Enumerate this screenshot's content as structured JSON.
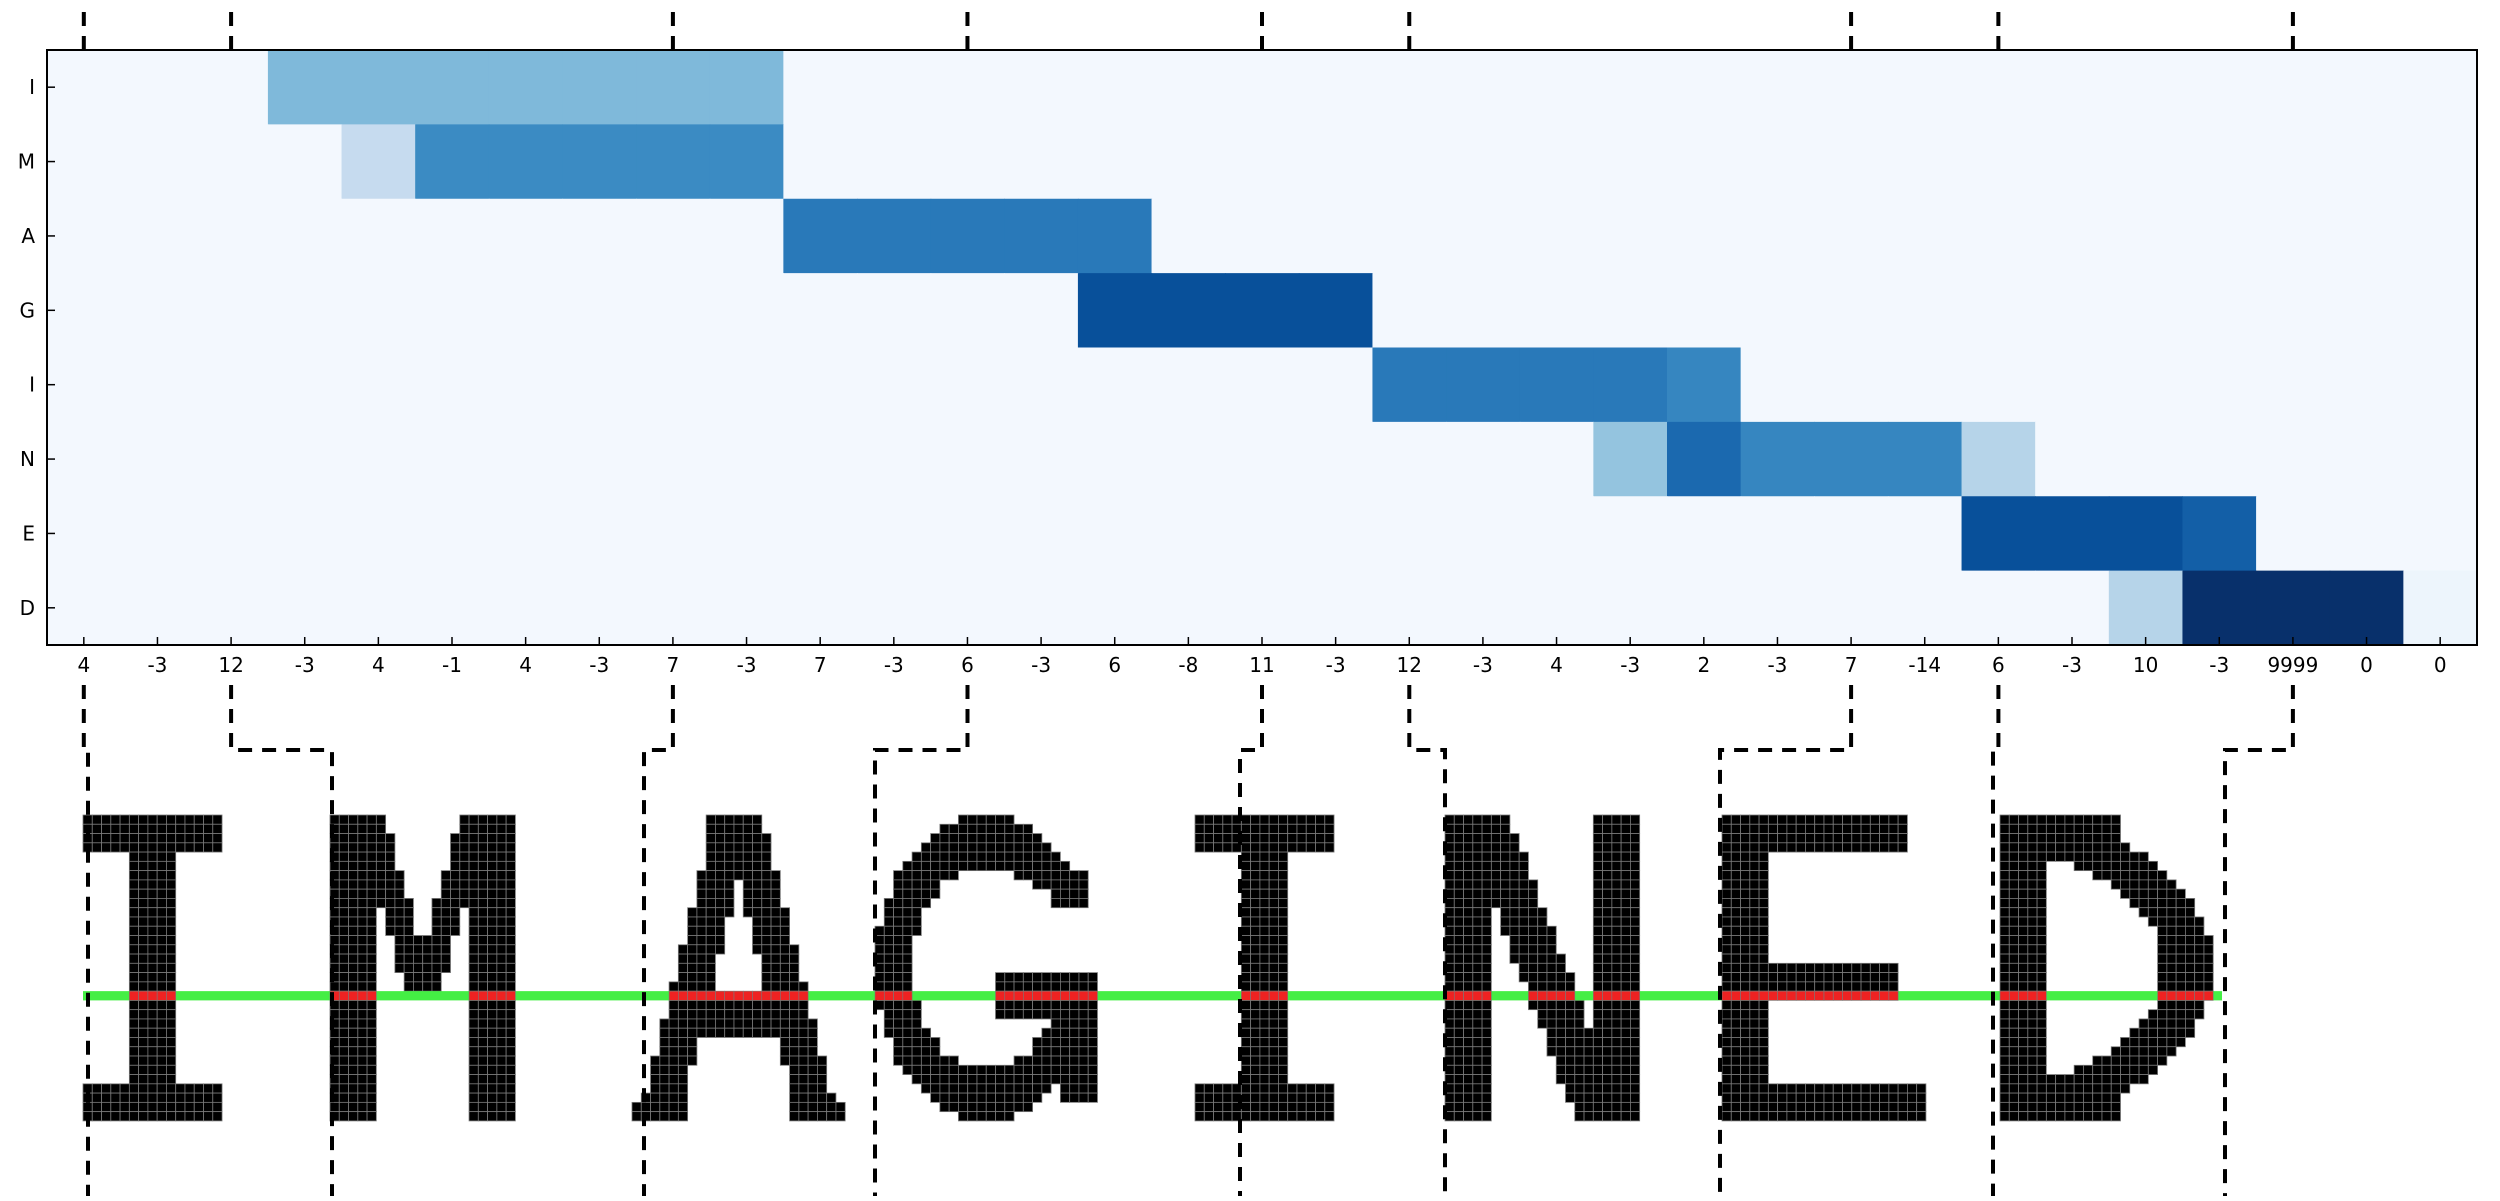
{
  "chart_data": {
    "type": "heatmap",
    "title": "",
    "xlabel": "",
    "ylabel": "",
    "y_labels": [
      "I",
      "M",
      "A",
      "G",
      "I",
      "N",
      "E",
      "D"
    ],
    "x_tick_labels": [
      "4",
      "-3",
      "12",
      "-3",
      "4",
      "-1",
      "4",
      "-3",
      "7",
      "-3",
      "7",
      "-3",
      "6",
      "-3",
      "6",
      "-8",
      "11",
      "-3",
      "12",
      "-3",
      "4",
      "-3",
      "2",
      "-3",
      "7",
      "-14",
      "6",
      "-3",
      "10",
      "-3",
      "9999",
      "0",
      "0"
    ],
    "colormap": "Blues",
    "values": [
      [
        0.02,
        0.02,
        0.02,
        0.45,
        0.45,
        0.45,
        0.45,
        0.45,
        0.45,
        0.45,
        0.02,
        0.02,
        0.02,
        0.02,
        0.02,
        0.02,
        0.02,
        0.02,
        0.02,
        0.02,
        0.02,
        0.02,
        0.02,
        0.02,
        0.02,
        0.02,
        0.02,
        0.02,
        0.02,
        0.02,
        0.02,
        0.02,
        0.02
      ],
      [
        0.02,
        0.02,
        0.02,
        0.02,
        0.25,
        0.65,
        0.65,
        0.65,
        0.65,
        0.65,
        0.02,
        0.02,
        0.02,
        0.02,
        0.02,
        0.02,
        0.02,
        0.02,
        0.02,
        0.02,
        0.02,
        0.02,
        0.02,
        0.02,
        0.02,
        0.02,
        0.02,
        0.02,
        0.02,
        0.02,
        0.02,
        0.02,
        0.02
      ],
      [
        0.02,
        0.02,
        0.02,
        0.02,
        0.02,
        0.02,
        0.02,
        0.02,
        0.02,
        0.02,
        0.72,
        0.72,
        0.72,
        0.72,
        0.72,
        0.02,
        0.02,
        0.02,
        0.02,
        0.02,
        0.02,
        0.02,
        0.02,
        0.02,
        0.02,
        0.02,
        0.02,
        0.02,
        0.02,
        0.02,
        0.02,
        0.02,
        0.02
      ],
      [
        0.02,
        0.02,
        0.02,
        0.02,
        0.02,
        0.02,
        0.02,
        0.02,
        0.02,
        0.02,
        0.02,
        0.02,
        0.02,
        0.02,
        0.88,
        0.88,
        0.88,
        0.88,
        0.02,
        0.02,
        0.02,
        0.02,
        0.02,
        0.02,
        0.02,
        0.02,
        0.02,
        0.02,
        0.02,
        0.02,
        0.02,
        0.02,
        0.02
      ],
      [
        0.02,
        0.02,
        0.02,
        0.02,
        0.02,
        0.02,
        0.02,
        0.02,
        0.02,
        0.02,
        0.02,
        0.02,
        0.02,
        0.02,
        0.02,
        0.02,
        0.02,
        0.02,
        0.72,
        0.72,
        0.72,
        0.72,
        0.67,
        0.02,
        0.02,
        0.02,
        0.02,
        0.02,
        0.02,
        0.02,
        0.02,
        0.02,
        0.02
      ],
      [
        0.02,
        0.02,
        0.02,
        0.02,
        0.02,
        0.02,
        0.02,
        0.02,
        0.02,
        0.02,
        0.02,
        0.02,
        0.02,
        0.02,
        0.02,
        0.02,
        0.02,
        0.02,
        0.02,
        0.02,
        0.02,
        0.4,
        0.78,
        0.67,
        0.67,
        0.67,
        0.3,
        0.02,
        0.02,
        0.02,
        0.02,
        0.02,
        0.02
      ],
      [
        0.02,
        0.02,
        0.02,
        0.02,
        0.02,
        0.02,
        0.02,
        0.02,
        0.02,
        0.02,
        0.02,
        0.02,
        0.02,
        0.02,
        0.02,
        0.02,
        0.02,
        0.02,
        0.02,
        0.02,
        0.02,
        0.02,
        0.02,
        0.02,
        0.02,
        0.02,
        0.88,
        0.88,
        0.88,
        0.82,
        0.02,
        0.02,
        0.02
      ],
      [
        0.02,
        0.02,
        0.02,
        0.02,
        0.02,
        0.02,
        0.02,
        0.02,
        0.02,
        0.02,
        0.02,
        0.02,
        0.02,
        0.02,
        0.02,
        0.02,
        0.02,
        0.02,
        0.02,
        0.02,
        0.02,
        0.02,
        0.02,
        0.02,
        0.02,
        0.02,
        0.02,
        0.02,
        0.3,
        1.0,
        1.0,
        1.0,
        0.05
      ]
    ]
  },
  "word": "IMAGINED",
  "letters": [
    "I",
    "M",
    "A",
    "G",
    "I",
    "N",
    "E",
    "D"
  ],
  "colors": {
    "heatmap_low": "#f7fbff",
    "heatmap_high": "#08306b",
    "pixel_fill": "#000000",
    "pixel_grid": "#7a7a7a",
    "scanline_background": "#44ee44",
    "scanline_hit": "#ee2222",
    "divider": "#000000"
  }
}
